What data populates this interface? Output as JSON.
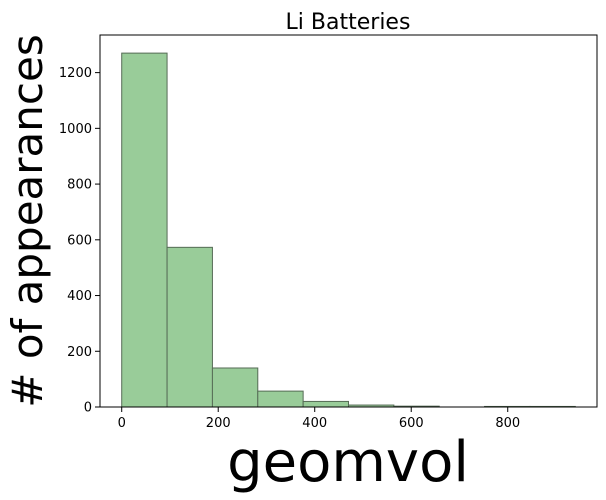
{
  "chart_data": {
    "type": "bar",
    "title": "Li Batteries",
    "xlabel": "geomvol",
    "ylabel": "# of appearances",
    "bin_edges": [
      0,
      94,
      188,
      282,
      376,
      470,
      564,
      658,
      752,
      846,
      940
    ],
    "values": [
      1270,
      573,
      140,
      57,
      20,
      7,
      3,
      0,
      2,
      2
    ],
    "xlim": [
      -45,
      985
    ],
    "ylim": [
      0,
      1335
    ],
    "xticks": [
      0,
      200,
      400,
      600,
      800
    ],
    "yticks": [
      0,
      200,
      400,
      600,
      800,
      1000,
      1200
    ],
    "bar_color": "#99cc99",
    "bar_edge_color": "#556b55",
    "grid": false
  }
}
